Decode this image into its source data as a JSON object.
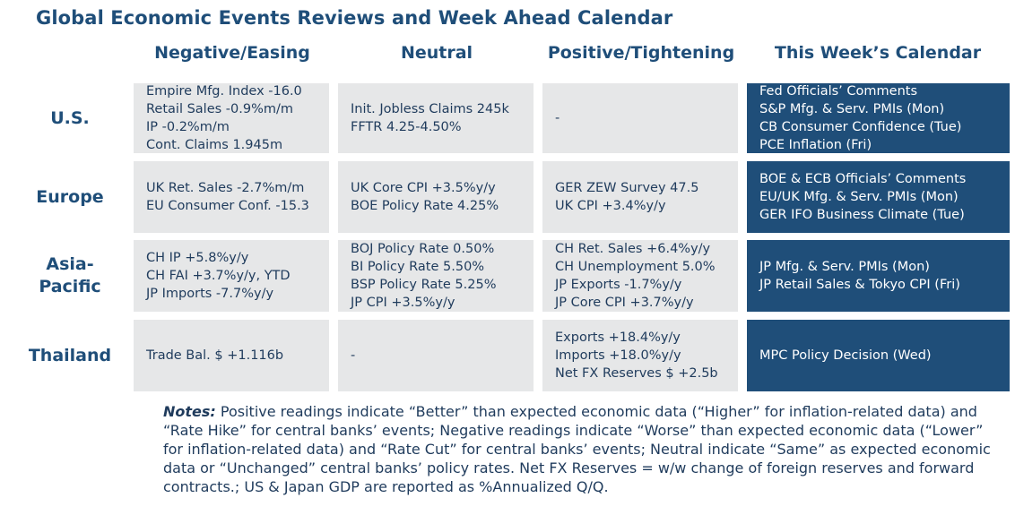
{
  "title": "Global Economic Events Reviews and Week Ahead Calendar",
  "columns": [
    "Negative/Easing",
    "Neutral",
    "Positive/Tightening",
    "This Week’s Calendar"
  ],
  "rows": [
    {
      "label": "U.S.",
      "negative": [
        "Empire Mfg. Index -16.0",
        "Retail Sales -0.9%m/m",
        "IP -0.2%m/m",
        "Cont. Claims 1.945m"
      ],
      "neutral": [
        "Init. Jobless Claims 245k",
        "FFTR 4.25-4.50%"
      ],
      "positive": [
        "-"
      ],
      "calendar": [
        "Fed Officials’ Comments",
        "S&P Mfg. & Serv. PMIs (Mon)",
        "CB Consumer Confidence (Tue)",
        "PCE Inflation (Fri)"
      ]
    },
    {
      "label": "Europe",
      "negative": [
        "UK Ret. Sales -2.7%m/m",
        "EU Consumer Conf. -15.3"
      ],
      "neutral": [
        "UK Core CPI +3.5%y/y",
        "BOE Policy Rate 4.25%"
      ],
      "positive": [
        "GER ZEW Survey 47.5",
        "UK CPI +3.4%y/y"
      ],
      "calendar": [
        "BOE & ECB Officials’ Comments",
        "EU/UK Mfg. & Serv. PMIs (Mon)",
        "GER IFO Business Climate (Tue)"
      ]
    },
    {
      "label": "Asia-Pacific",
      "label_lines": [
        "Asia-",
        "Pacific"
      ],
      "negative": [
        "CH IP +5.8%y/y",
        "CH FAI +3.7%y/y, YTD",
        "JP Imports -7.7%y/y"
      ],
      "neutral": [
        "BOJ Policy Rate 0.50%",
        "BI Policy Rate 5.50%",
        "BSP Policy Rate 5.25%",
        "JP CPI +3.5%y/y"
      ],
      "positive": [
        "CH Ret. Sales +6.4%y/y",
        "CH Unemployment 5.0%",
        "JP Exports -1.7%y/y",
        "JP Core CPI +3.7%y/y"
      ],
      "calendar": [
        "JP Mfg. & Serv. PMIs (Mon)",
        "JP Retail Sales & Tokyo CPI (Fri)"
      ]
    },
    {
      "label": "Thailand",
      "negative": [
        "Trade Bal. $ +1.116b"
      ],
      "neutral": [
        "-"
      ],
      "positive": [
        "Exports +18.4%y/y",
        "Imports +18.0%y/y",
        "Net FX Reserves $ +2.5b"
      ],
      "calendar": [
        "MPC Policy Decision (Wed)"
      ]
    }
  ],
  "notes": {
    "label": "Notes:",
    "text": " Positive readings indicate “Better” than expected economic data (“Higher” for inflation-related data) and “Rate Hike” for central banks’ events; Negative readings indicate “Worse” than expected economic data (“Lower” for inflation-related data) and “Rate Cut” for central banks’ events; Neutral indicate “Same” as expected economic data or “Unchanged” central banks’ policy rates. Net FX Reserves = w/w change of foreign reserves and forward contracts.; US & Japan GDP are reported as %Annualized Q/Q."
  }
}
